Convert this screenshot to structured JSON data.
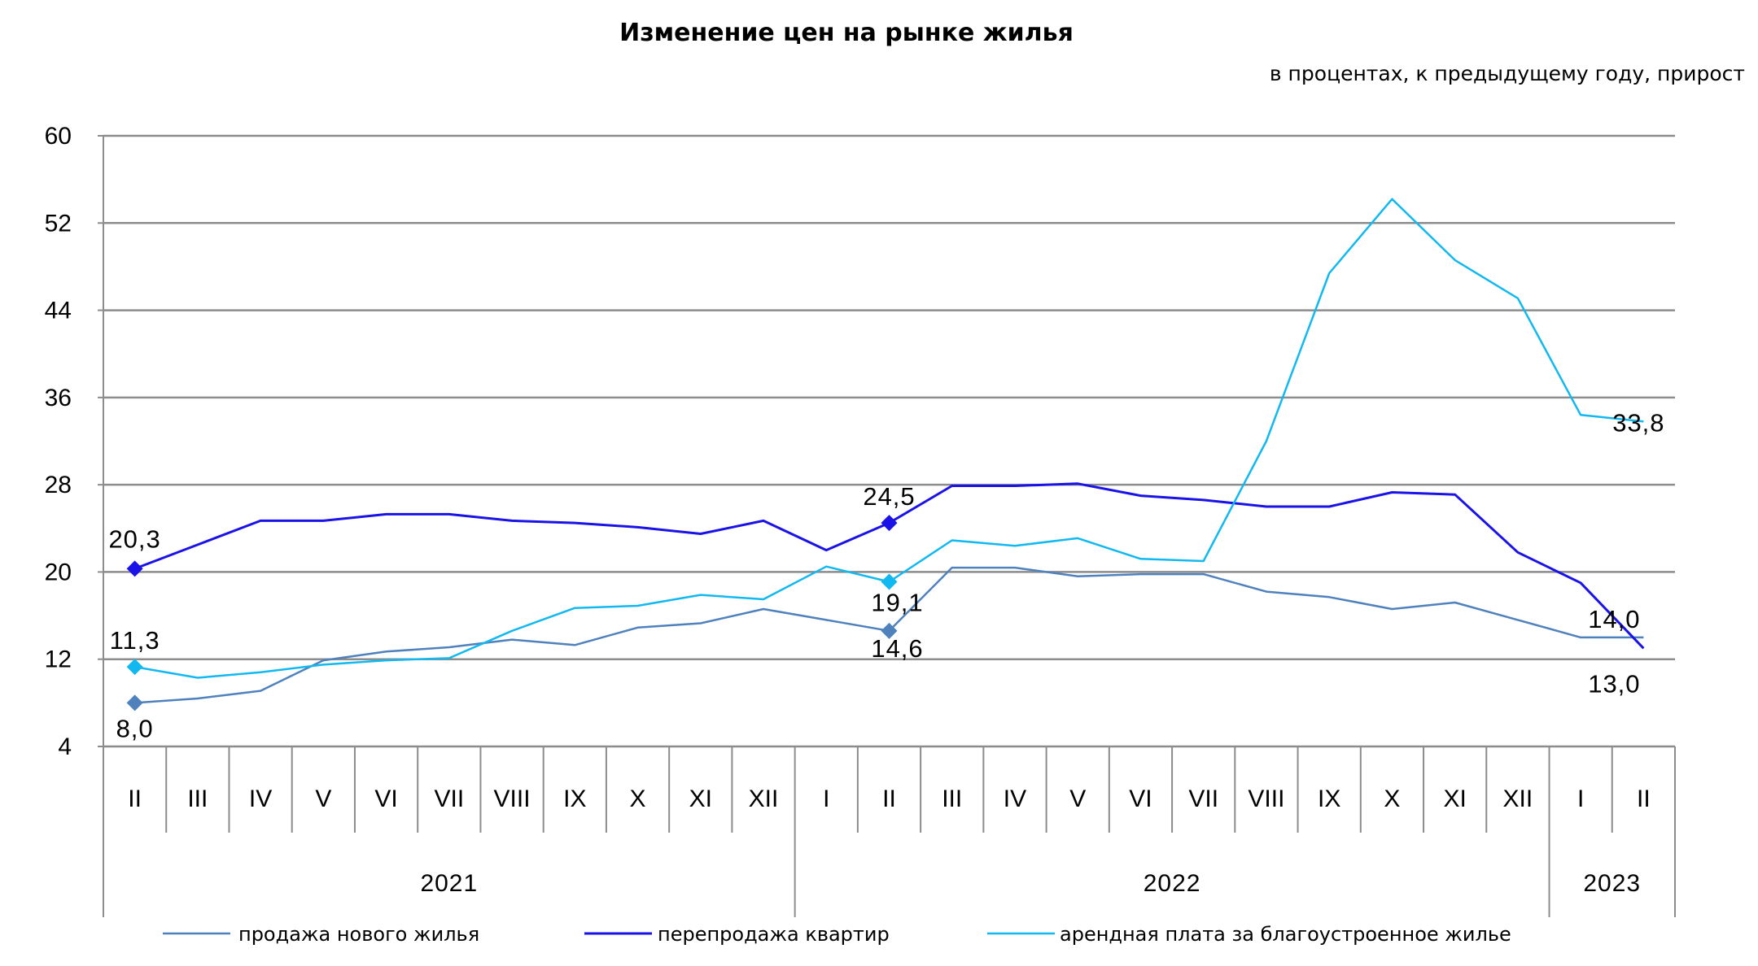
{
  "chart_data": {
    "type": "line",
    "title": "Изменение цен на рынке жилья",
    "subtitle": "в процентах,  к предыдущему году, прирост",
    "ylim": [
      4,
      60
    ],
    "yticks": [
      "60",
      "52",
      "44",
      "36",
      "28",
      "20",
      "12",
      "4"
    ],
    "grid": true,
    "legend_position": "bottom",
    "categories": [
      "II",
      "III",
      "IV",
      "V",
      "VI",
      "VII",
      "VIII",
      "IX",
      "X",
      "XI",
      "XII",
      "I",
      "II",
      "III",
      "IV",
      "V",
      "VI",
      "VII",
      "VIII",
      "IX",
      "X",
      "XI",
      "XII",
      "I",
      "II"
    ],
    "years": [
      {
        "label": "2021",
        "start": 0,
        "end": 11
      },
      {
        "label": "2022",
        "start": 11,
        "end": 23
      },
      {
        "label": "2023",
        "start": 23,
        "end": 25
      }
    ],
    "series": [
      {
        "name": "продажа нового  жилья",
        "color": "#4f81bd",
        "values": [
          8.0,
          8.4,
          9.1,
          11.9,
          12.7,
          13.1,
          13.8,
          13.3,
          14.9,
          15.3,
          16.6,
          15.6,
          14.6,
          20.4,
          20.4,
          19.6,
          19.8,
          19.8,
          18.2,
          17.7,
          16.6,
          17.2,
          15.6,
          14.0,
          14.0
        ]
      },
      {
        "name": "перепродажа  квартир",
        "color": "#1a12e6",
        "values": [
          20.3,
          22.5,
          24.7,
          24.7,
          25.3,
          25.3,
          24.7,
          24.5,
          24.1,
          23.5,
          24.7,
          22.0,
          24.5,
          27.9,
          27.9,
          28.1,
          27.0,
          26.6,
          26.0,
          26.0,
          27.3,
          27.1,
          21.8,
          19.0,
          13.0
        ]
      },
      {
        "name": "арендная  плата за благоустроенное   жилье",
        "color": "#12b8f0",
        "values": [
          11.3,
          10.3,
          10.8,
          11.5,
          11.9,
          12.1,
          14.6,
          16.7,
          16.9,
          17.9,
          17.5,
          20.5,
          19.1,
          22.9,
          22.4,
          23.1,
          21.2,
          21.0,
          32.0,
          47.4,
          54.2,
          48.6,
          45.1,
          34.4,
          33.8
        ]
      }
    ],
    "data_labels": [
      {
        "series": 1,
        "index": 0,
        "text": "20,3"
      },
      {
        "series": 2,
        "index": 0,
        "text": "11,3"
      },
      {
        "series": 0,
        "index": 0,
        "text": "8,0"
      },
      {
        "series": 1,
        "index": 12,
        "text": "24,5"
      },
      {
        "series": 2,
        "index": 12,
        "text": "19,1"
      },
      {
        "series": 0,
        "index": 12,
        "text": "14,6"
      },
      {
        "series": 2,
        "index": 24,
        "text": "33,8"
      },
      {
        "series": 0,
        "index": 24,
        "text": "14,0"
      },
      {
        "series": 1,
        "index": 24,
        "text": "13,0"
      }
    ],
    "markers": [
      {
        "series": 1,
        "index": 0
      },
      {
        "series": 2,
        "index": 0
      },
      {
        "series": 0,
        "index": 0
      },
      {
        "series": 1,
        "index": 12
      },
      {
        "series": 2,
        "index": 12
      },
      {
        "series": 0,
        "index": 12
      }
    ]
  }
}
